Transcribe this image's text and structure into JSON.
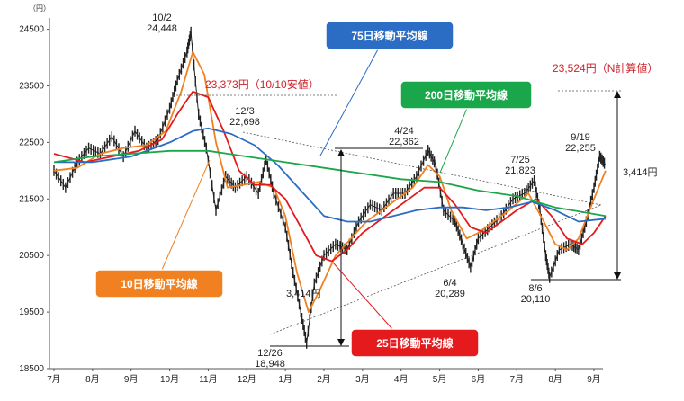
{
  "chart_data": {
    "type": "line",
    "unit_label": "（円）",
    "y_ticks": [
      18500,
      19500,
      20500,
      21500,
      22500,
      23500,
      24500
    ],
    "ylim": [
      18500,
      24700
    ],
    "x_ticks": [
      "7月",
      "8月",
      "9月",
      "10月",
      "11月",
      "12月",
      "1月",
      "2月",
      "3月",
      "4月",
      "5月",
      "6月",
      "7月",
      "8月",
      "9月"
    ],
    "price_points": [
      {
        "month": 0.0,
        "value": 22000
      },
      {
        "month": 0.3,
        "value": 21700
      },
      {
        "month": 0.6,
        "value": 22150
      },
      {
        "month": 0.9,
        "value": 22400
      },
      {
        "month": 1.2,
        "value": 22300
      },
      {
        "month": 1.5,
        "value": 22600
      },
      {
        "month": 1.8,
        "value": 22250
      },
      {
        "month": 2.1,
        "value": 22700
      },
      {
        "month": 2.4,
        "value": 22400
      },
      {
        "month": 2.7,
        "value": 22550
      },
      {
        "month": 3.0,
        "value": 23100
      },
      {
        "month": 3.2,
        "value": 23600
      },
      {
        "month": 3.45,
        "value": 24100
      },
      {
        "month": 3.55,
        "value": 24448
      },
      {
        "month": 3.75,
        "value": 23000
      },
      {
        "month": 3.95,
        "value": 22400
      },
      {
        "month": 4.2,
        "value": 21300
      },
      {
        "month": 4.45,
        "value": 21900
      },
      {
        "month": 4.7,
        "value": 21700
      },
      {
        "month": 5.0,
        "value": 21900
      },
      {
        "month": 5.3,
        "value": 21600
      },
      {
        "month": 5.5,
        "value": 22200
      },
      {
        "month": 5.7,
        "value": 21600
      },
      {
        "month": 6.0,
        "value": 21000
      },
      {
        "month": 6.2,
        "value": 20200
      },
      {
        "month": 6.4,
        "value": 19500
      },
      {
        "month": 6.55,
        "value": 18948
      },
      {
        "month": 6.75,
        "value": 20000
      },
      {
        "month": 7.0,
        "value": 20500
      },
      {
        "month": 7.3,
        "value": 20700
      },
      {
        "month": 7.6,
        "value": 20600
      },
      {
        "month": 7.9,
        "value": 21100
      },
      {
        "month": 8.2,
        "value": 21400
      },
      {
        "month": 8.5,
        "value": 21300
      },
      {
        "month": 8.8,
        "value": 21600
      },
      {
        "month": 9.1,
        "value": 21600
      },
      {
        "month": 9.4,
        "value": 21900
      },
      {
        "month": 9.7,
        "value": 22362
      },
      {
        "month": 9.9,
        "value": 22100
      },
      {
        "month": 10.1,
        "value": 21300
      },
      {
        "month": 10.4,
        "value": 21100
      },
      {
        "month": 10.6,
        "value": 20700
      },
      {
        "month": 10.8,
        "value": 20289
      },
      {
        "month": 11.0,
        "value": 20800
      },
      {
        "month": 11.3,
        "value": 21000
      },
      {
        "month": 11.6,
        "value": 21200
      },
      {
        "month": 11.9,
        "value": 21500
      },
      {
        "month": 12.2,
        "value": 21600
      },
      {
        "month": 12.45,
        "value": 21823
      },
      {
        "month": 12.6,
        "value": 21300
      },
      {
        "month": 12.75,
        "value": 20500
      },
      {
        "month": 12.85,
        "value": 20110
      },
      {
        "month": 13.1,
        "value": 20600
      },
      {
        "month": 13.4,
        "value": 20700
      },
      {
        "month": 13.6,
        "value": 20600
      },
      {
        "month": 13.8,
        "value": 21100
      },
      {
        "month": 14.0,
        "value": 21700
      },
      {
        "month": 14.15,
        "value": 22255
      },
      {
        "month": 14.3,
        "value": 22100
      }
    ],
    "series": [
      {
        "name": "10日移動平均線",
        "color": "#f08020",
        "points": [
          {
            "month": 0.0,
            "value": 22000
          },
          {
            "month": 0.6,
            "value": 22050
          },
          {
            "month": 1.2,
            "value": 22300
          },
          {
            "month": 1.8,
            "value": 22400
          },
          {
            "month": 2.4,
            "value": 22450
          },
          {
            "month": 2.9,
            "value": 22700
          },
          {
            "month": 3.3,
            "value": 23400
          },
          {
            "month": 3.6,
            "value": 24100
          },
          {
            "month": 3.9,
            "value": 23700
          },
          {
            "month": 4.2,
            "value": 22500
          },
          {
            "month": 4.5,
            "value": 21700
          },
          {
            "month": 4.9,
            "value": 21750
          },
          {
            "month": 5.3,
            "value": 21800
          },
          {
            "month": 5.7,
            "value": 21700
          },
          {
            "month": 6.0,
            "value": 21200
          },
          {
            "month": 6.3,
            "value": 20200
          },
          {
            "month": 6.6,
            "value": 19500
          },
          {
            "month": 6.9,
            "value": 19900
          },
          {
            "month": 7.3,
            "value": 20500
          },
          {
            "month": 7.7,
            "value": 20800
          },
          {
            "month": 8.1,
            "value": 21100
          },
          {
            "month": 8.5,
            "value": 21300
          },
          {
            "month": 8.9,
            "value": 21500
          },
          {
            "month": 9.3,
            "value": 21700
          },
          {
            "month": 9.7,
            "value": 22100
          },
          {
            "month": 10.0,
            "value": 21900
          },
          {
            "month": 10.3,
            "value": 21300
          },
          {
            "month": 10.7,
            "value": 20800
          },
          {
            "month": 11.0,
            "value": 20900
          },
          {
            "month": 11.4,
            "value": 21100
          },
          {
            "month": 11.8,
            "value": 21300
          },
          {
            "month": 12.3,
            "value": 21600
          },
          {
            "month": 12.7,
            "value": 21100
          },
          {
            "month": 13.0,
            "value": 20700
          },
          {
            "month": 13.3,
            "value": 20600
          },
          {
            "month": 13.6,
            "value": 20800
          },
          {
            "month": 14.0,
            "value": 21500
          },
          {
            "month": 14.3,
            "value": 22000
          }
        ]
      },
      {
        "name": "25日移動平均線",
        "color": "#e41a1c",
        "points": [
          {
            "month": 0.0,
            "value": 22300
          },
          {
            "month": 0.8,
            "value": 22150
          },
          {
            "month": 1.5,
            "value": 22250
          },
          {
            "month": 2.2,
            "value": 22350
          },
          {
            "month": 2.8,
            "value": 22550
          },
          {
            "month": 3.2,
            "value": 23000
          },
          {
            "month": 3.6,
            "value": 23400
          },
          {
            "month": 4.0,
            "value": 23300
          },
          {
            "month": 4.4,
            "value": 22700
          },
          {
            "month": 4.8,
            "value": 22000
          },
          {
            "month": 5.2,
            "value": 21750
          },
          {
            "month": 5.6,
            "value": 21750
          },
          {
            "month": 6.0,
            "value": 21500
          },
          {
            "month": 6.4,
            "value": 21000
          },
          {
            "month": 6.8,
            "value": 20500
          },
          {
            "month": 7.2,
            "value": 20400
          },
          {
            "month": 7.6,
            "value": 20600
          },
          {
            "month": 8.0,
            "value": 20900
          },
          {
            "month": 8.4,
            "value": 21100
          },
          {
            "month": 8.8,
            "value": 21300
          },
          {
            "month": 9.2,
            "value": 21500
          },
          {
            "month": 9.6,
            "value": 21700
          },
          {
            "month": 10.0,
            "value": 21700
          },
          {
            "month": 10.4,
            "value": 21400
          },
          {
            "month": 10.8,
            "value": 21000
          },
          {
            "month": 11.2,
            "value": 20900
          },
          {
            "month": 11.6,
            "value": 21100
          },
          {
            "month": 12.0,
            "value": 21300
          },
          {
            "month": 12.5,
            "value": 21500
          },
          {
            "month": 12.9,
            "value": 21200
          },
          {
            "month": 13.3,
            "value": 20800
          },
          {
            "month": 13.7,
            "value": 20700
          },
          {
            "month": 14.0,
            "value": 20900
          },
          {
            "month": 14.3,
            "value": 21200
          }
        ]
      },
      {
        "name": "75日移動平均線",
        "color": "#2b6cc4",
        "points": [
          {
            "month": 0.0,
            "value": 22150
          },
          {
            "month": 1.0,
            "value": 22150
          },
          {
            "month": 2.0,
            "value": 22250
          },
          {
            "month": 3.0,
            "value": 22500
          },
          {
            "month": 3.6,
            "value": 22700
          },
          {
            "month": 4.0,
            "value": 22750
          },
          {
            "month": 4.6,
            "value": 22650
          },
          {
            "month": 5.2,
            "value": 22450
          },
          {
            "month": 5.8,
            "value": 22100
          },
          {
            "month": 6.4,
            "value": 21650
          },
          {
            "month": 7.0,
            "value": 21200
          },
          {
            "month": 7.6,
            "value": 21100
          },
          {
            "month": 8.2,
            "value": 21100
          },
          {
            "month": 8.8,
            "value": 21200
          },
          {
            "month": 9.4,
            "value": 21300
          },
          {
            "month": 10.0,
            "value": 21350
          },
          {
            "month": 10.6,
            "value": 21350
          },
          {
            "month": 11.2,
            "value": 21300
          },
          {
            "month": 11.8,
            "value": 21350
          },
          {
            "month": 12.4,
            "value": 21450
          },
          {
            "month": 13.0,
            "value": 21300
          },
          {
            "month": 13.6,
            "value": 21100
          },
          {
            "month": 14.3,
            "value": 21150
          }
        ]
      },
      {
        "name": "200日移動平均線",
        "color": "#1aa64a",
        "points": [
          {
            "month": 0.0,
            "value": 22150
          },
          {
            "month": 1.0,
            "value": 22250
          },
          {
            "month": 2.0,
            "value": 22300
          },
          {
            "month": 3.0,
            "value": 22350
          },
          {
            "month": 4.0,
            "value": 22350
          },
          {
            "month": 5.0,
            "value": 22250
          },
          {
            "month": 6.0,
            "value": 22150
          },
          {
            "month": 7.0,
            "value": 22050
          },
          {
            "month": 8.0,
            "value": 21950
          },
          {
            "month": 9.0,
            "value": 21850
          },
          {
            "month": 10.0,
            "value": 21800
          },
          {
            "month": 11.0,
            "value": 21650
          },
          {
            "month": 12.0,
            "value": 21550
          },
          {
            "month": 13.0,
            "value": 21350
          },
          {
            "month": 14.3,
            "value": 21200
          }
        ]
      }
    ],
    "annotations": {
      "peak_date": "10/2",
      "peak_value": "24,448",
      "dec3_date": "12/3",
      "dec3_value": "22,698",
      "low_date": "12/26",
      "low_value": "18,948",
      "apr24_date": "4/24",
      "apr24_value": "22,362",
      "jun4_date": "6/4",
      "jun4_value": "20,289",
      "jul25_date": "7/25",
      "jul25_value": "21,823",
      "aug6_date": "8/6",
      "aug6_value": "20,110",
      "sep19_date": "9/19",
      "sep19_value": "22,255",
      "oct10_note": "23,373円（10/10安値）",
      "n_target_note": "23,524円（N計算値）",
      "range_left": "3,414円",
      "range_right": "3,414円"
    },
    "legend_boxes": {
      "ma10": "10日移動平均線",
      "ma25": "25日移動平均線",
      "ma75": "75日移動平均線",
      "ma200": "200日移動平均線"
    },
    "colors": {
      "price": "#222222",
      "ma10": "#f08020",
      "ma25": "#e41a1c",
      "ma75": "#2b6cc4",
      "ma200": "#1aa64a",
      "note_red": "#d0202a"
    }
  }
}
